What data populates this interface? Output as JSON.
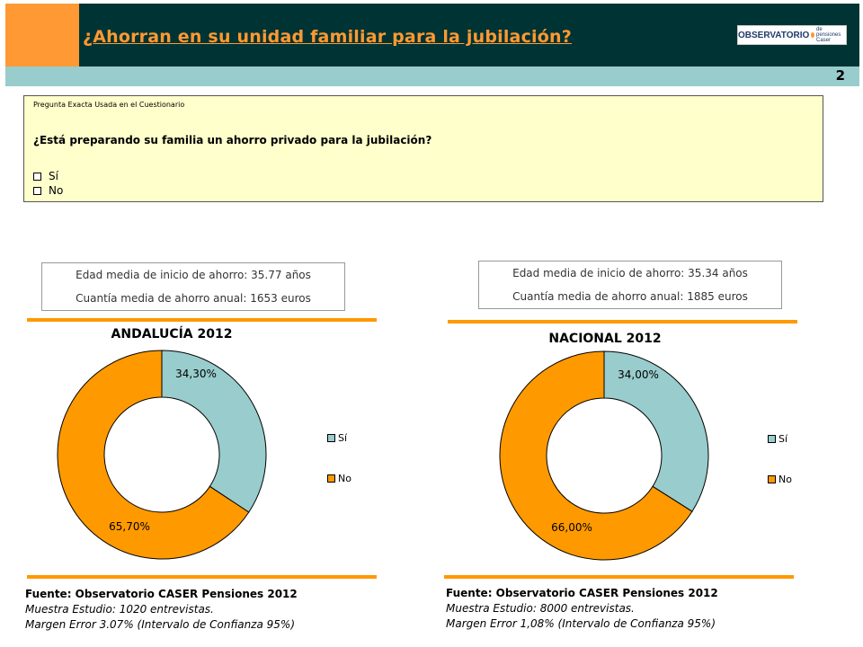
{
  "header": {
    "title": "¿Ahorran en su unidad familiar para la jubilación?",
    "logo_text": "OBSERVATORIO",
    "logo_small": "de pensiones Caser",
    "page_number": "2"
  },
  "question": {
    "label": "Pregunta Exacta Usada en el Cuestionario",
    "text": "¿Está preparando su familia un ahorro privado para la jubilación?",
    "options": [
      "Sí",
      "No"
    ]
  },
  "left": {
    "stat_age": "Edad media de inicio de ahorro: 35.77  años",
    "stat_amount": "Cuantía media de ahorro anual: 1653 euros",
    "source_title": "Fuente: Observatorio CASER Pensiones 2012",
    "source_sample": "Muestra Estudio: 1020 entrevistas.",
    "source_error": "Margen Error 3.07% (Intervalo de Confianza 95%)"
  },
  "right": {
    "stat_age": "Edad media de inicio de ahorro: 35.34 años",
    "stat_amount": "Cuantía media de ahorro anual: 1885 euros",
    "source_title": "Fuente: Observatorio CASER Pensiones 2012",
    "source_sample": "Muestra Estudio: 8000 entrevistas.",
    "source_error": "Margen Error 1,08% (Intervalo de Confianza 95%)"
  },
  "colors": {
    "si": "#99cccc",
    "no": "#ff9900",
    "header_dark": "#003333",
    "accent": "#ff9933"
  },
  "chart_data": [
    {
      "type": "pie",
      "title": "ANDALUCÍA 2012",
      "categories": [
        "Sí",
        "No"
      ],
      "values": [
        34.3,
        65.7
      ],
      "labels": [
        "34,30%",
        "65,70%"
      ],
      "legend": "right"
    },
    {
      "type": "pie",
      "title": "NACIONAL 2012",
      "categories": [
        "Sí",
        "No"
      ],
      "values": [
        34.0,
        66.0
      ],
      "labels": [
        "34,00%",
        "66,00%"
      ],
      "legend": "right"
    }
  ]
}
